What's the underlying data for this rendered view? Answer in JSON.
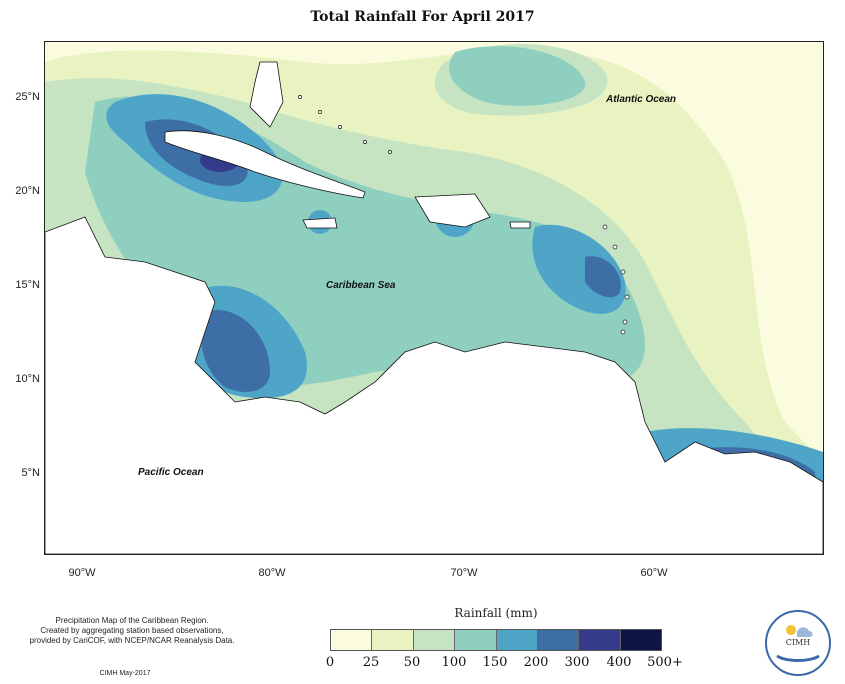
{
  "title": "Total Rainfall For April 2017",
  "axes": {
    "lat_ticks": [
      "25°N",
      "20°N",
      "15°N",
      "10°N",
      "5°N"
    ],
    "lon_ticks": [
      "90°W",
      "80°W",
      "70°W",
      "60°W"
    ]
  },
  "map_labels": {
    "atlantic": "Atlantic Ocean",
    "caribbean": "Caribbean Sea",
    "pacific": "Pacific Ocean"
  },
  "description": {
    "line1": "Precipitation Map of the Caribbean Region.",
    "line2": "Created by aggregating station based observations,",
    "line3": "provided by CariCOF, with NCEP/NCAR Reanalysis Data.",
    "credit": "CIMH May-2017"
  },
  "legend": {
    "title": "Rainfall (mm)",
    "ticks": [
      "0",
      "25",
      "50",
      "100",
      "150",
      "200",
      "300",
      "400",
      "500+"
    ],
    "colors": [
      "#fbfcdf",
      "#e9f3c2",
      "#c6e4c2",
      "#8ecfc0",
      "#4fa5c8",
      "#3d6fa6",
      "#343b8b",
      "#0e1545"
    ]
  },
  "logo": {
    "text": "CIMH"
  },
  "map_colors": {
    "land": "#ffffff",
    "coast": "#111111"
  }
}
